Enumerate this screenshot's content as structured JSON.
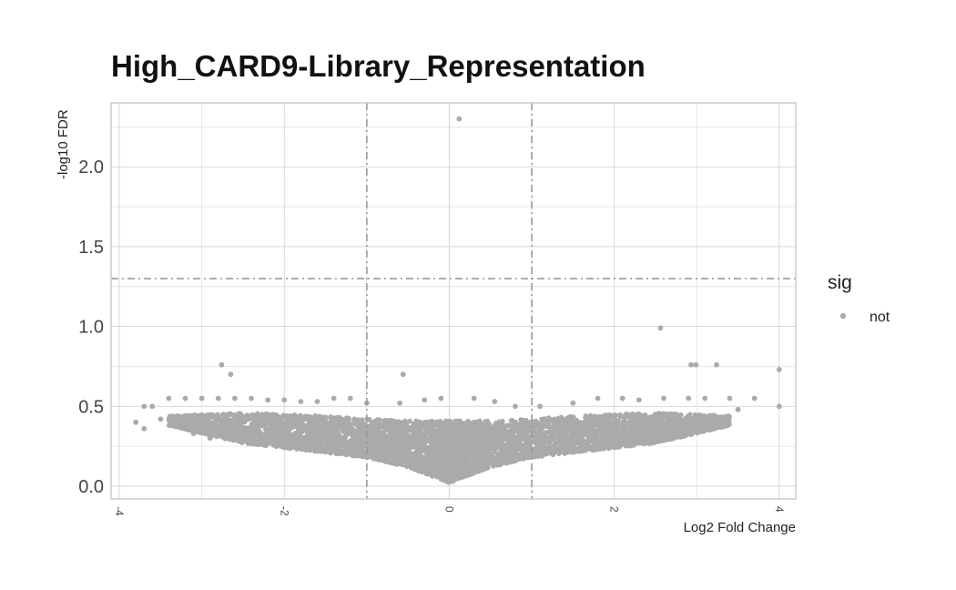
{
  "chart_data": {
    "type": "scatter",
    "title": "High_CARD9-Library_Representation",
    "xlabel": "Log2 Fold Change",
    "ylabel": "-log10 FDR",
    "xlim": [
      -4.1,
      4.2
    ],
    "ylim": [
      -0.08,
      2.4
    ],
    "x_ticks": [
      -4,
      -2,
      0,
      2,
      4
    ],
    "x_tick_labels": [
      "-4",
      "-2",
      "0",
      "2",
      "4"
    ],
    "y_ticks": [
      0.0,
      0.5,
      1.0,
      1.5,
      2.0
    ],
    "y_tick_labels": [
      "0.0",
      "0.5",
      "1.0",
      "1.5",
      "2.0"
    ],
    "grid": true,
    "threshold_lines": {
      "vertical": [
        -1,
        1
      ],
      "horizontal": [
        1.3
      ],
      "style": "dashdot"
    },
    "legend": {
      "title": "sig",
      "placement": "right",
      "entries": [
        {
          "label": "not",
          "color": "#aaaaaa"
        }
      ]
    },
    "point_color": "#aaaaaa",
    "series": [
      {
        "points": [
          [
            0.12,
            2.3
          ],
          [
            2.56,
            0.99
          ],
          [
            -2.76,
            0.76
          ],
          [
            -2.65,
            0.7
          ],
          [
            -0.56,
            0.7
          ],
          [
            2.93,
            0.76
          ],
          [
            2.99,
            0.76
          ],
          [
            3.24,
            0.76
          ],
          [
            4.0,
            0.73
          ],
          [
            4.0,
            0.5
          ],
          [
            -3.7,
            0.5
          ],
          [
            -3.6,
            0.5
          ],
          [
            -3.8,
            0.4
          ],
          [
            -3.7,
            0.36
          ],
          [
            -3.5,
            0.42
          ],
          [
            -3.4,
            0.55
          ],
          [
            -3.2,
            0.55
          ],
          [
            -3.0,
            0.55
          ],
          [
            -2.8,
            0.55
          ],
          [
            -2.6,
            0.55
          ],
          [
            -2.4,
            0.55
          ],
          [
            -2.2,
            0.54
          ],
          [
            -2.0,
            0.54
          ],
          [
            -1.8,
            0.53
          ],
          [
            -1.6,
            0.53
          ],
          [
            -1.4,
            0.55
          ],
          [
            -1.2,
            0.55
          ],
          [
            -1.0,
            0.52
          ],
          [
            -0.6,
            0.52
          ],
          [
            -0.3,
            0.54
          ],
          [
            -0.1,
            0.55
          ],
          [
            0.3,
            0.55
          ],
          [
            0.55,
            0.53
          ],
          [
            0.8,
            0.5
          ],
          [
            1.1,
            0.5
          ],
          [
            1.5,
            0.52
          ],
          [
            1.8,
            0.55
          ],
          [
            2.1,
            0.55
          ],
          [
            2.3,
            0.54
          ],
          [
            2.6,
            0.55
          ],
          [
            2.9,
            0.55
          ],
          [
            3.1,
            0.55
          ],
          [
            3.4,
            0.55
          ],
          [
            3.7,
            0.55
          ],
          [
            3.3,
            0.38
          ],
          [
            3.1,
            0.41
          ],
          [
            2.9,
            0.44
          ],
          [
            3.5,
            0.48
          ],
          [
            -3.1,
            0.33
          ],
          [
            -2.9,
            0.3
          ],
          [
            -3.3,
            0.38
          ],
          [
            -2.5,
            0.28
          ]
        ]
      }
    ],
    "bulk_density": {
      "description_envelope_x": [
        -3.4,
        -2.5,
        -1.5,
        -1.0,
        -0.5,
        0.0,
        0.5,
        1.0,
        1.5,
        2.5,
        3.4
      ],
      "lower_y": [
        0.38,
        0.27,
        0.21,
        0.18,
        0.12,
        0.02,
        0.12,
        0.18,
        0.21,
        0.27,
        0.38
      ],
      "upper_y": [
        0.44,
        0.46,
        0.44,
        0.42,
        0.41,
        0.41,
        0.41,
        0.42,
        0.44,
        0.46,
        0.44
      ],
      "count": 6000
    }
  }
}
